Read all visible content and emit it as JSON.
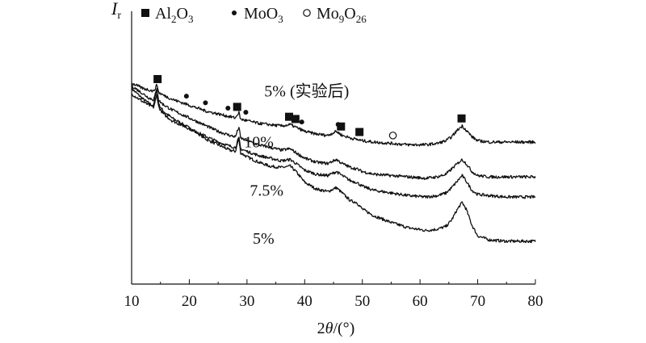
{
  "chart_data": {
    "type": "line",
    "xlabel": {
      "prefix": "2",
      "var": "θ",
      "suffix": "/(°)"
    },
    "ylabel": {
      "var": "I",
      "sub": "r"
    },
    "xlim": [
      10,
      80
    ],
    "x_ticks": [
      10,
      20,
      30,
      40,
      50,
      60,
      70,
      80
    ],
    "y_ticks": [],
    "grid": false,
    "legend": {
      "placement": "top",
      "entries": [
        {
          "marker": "square",
          "label_parts": [
            [
              "Al",
              false
            ],
            [
              "2",
              true
            ],
            [
              "O",
              false
            ],
            [
              "3",
              true
            ]
          ]
        },
        {
          "marker": "dot",
          "label_parts": [
            [
              "MoO",
              false
            ],
            [
              "3",
              true
            ]
          ]
        },
        {
          "marker": "circle",
          "label_parts": [
            [
              "Mo",
              false
            ],
            [
              "9",
              true
            ],
            [
              "O",
              false
            ],
            [
              "26",
              true
            ]
          ]
        }
      ]
    },
    "series": [
      {
        "name": "5%",
        "label": "5%",
        "label_x": 31,
        "baseline": 15,
        "points": [
          [
            10,
            73
          ],
          [
            11,
            71
          ],
          [
            12,
            69
          ],
          [
            13,
            67.5
          ],
          [
            13.8,
            66.5
          ],
          [
            14.2,
            71
          ],
          [
            14.4,
            73
          ],
          [
            14.7,
            67
          ],
          [
            15.5,
            64.5
          ],
          [
            17,
            62
          ],
          [
            19,
            59.5
          ],
          [
            21,
            57
          ],
          [
            23,
            54
          ],
          [
            25,
            52
          ],
          [
            27,
            50
          ],
          [
            28,
            49.5
          ],
          [
            28.4,
            53
          ],
          [
            28.6,
            54
          ],
          [
            28.9,
            49
          ],
          [
            30,
            47.5
          ],
          [
            32,
            45.5
          ],
          [
            34,
            44
          ],
          [
            36,
            43.5
          ],
          [
            37.5,
            44
          ],
          [
            38.5,
            42
          ],
          [
            40,
            38
          ],
          [
            42,
            35.5
          ],
          [
            44,
            34.5
          ],
          [
            45.5,
            36
          ],
          [
            46.5,
            34
          ],
          [
            48,
            31
          ],
          [
            49,
            30.5
          ],
          [
            50,
            28
          ],
          [
            52,
            25.5
          ],
          [
            55,
            23
          ],
          [
            58,
            21
          ],
          [
            61,
            20
          ],
          [
            63,
            20.5
          ],
          [
            64.5,
            21.5
          ],
          [
            65.5,
            24
          ],
          [
            66.5,
            28
          ],
          [
            67.3,
            30.5
          ],
          [
            68,
            28
          ],
          [
            69,
            22
          ],
          [
            70,
            18
          ],
          [
            72,
            16.5
          ],
          [
            75,
            16
          ],
          [
            80,
            16
          ]
        ]
      },
      {
        "name": "7.5%",
        "label": "7.5%",
        "label_x": 30.5,
        "baseline": 33,
        "points": [
          [
            10,
            71
          ],
          [
            11,
            69.5
          ],
          [
            12,
            68
          ],
          [
            13,
            66.8
          ],
          [
            13.8,
            66
          ],
          [
            14.2,
            69
          ],
          [
            14.4,
            70.5
          ],
          [
            14.7,
            66
          ],
          [
            15.5,
            63.5
          ],
          [
            17,
            61
          ],
          [
            19,
            59
          ],
          [
            21,
            57
          ],
          [
            23,
            55
          ],
          [
            25,
            53
          ],
          [
            27,
            51.5
          ],
          [
            28,
            51
          ],
          [
            28.4,
            53.5
          ],
          [
            28.6,
            54.5
          ],
          [
            28.9,
            50.5
          ],
          [
            30,
            49.5
          ],
          [
            32,
            48
          ],
          [
            34,
            47
          ],
          [
            36,
            46
          ],
          [
            37.5,
            46.5
          ],
          [
            38.5,
            45
          ],
          [
            40,
            42.5
          ],
          [
            42,
            41
          ],
          [
            44,
            40.5
          ],
          [
            45.5,
            42
          ],
          [
            46.5,
            40.5
          ],
          [
            48,
            38.5
          ],
          [
            49,
            38
          ],
          [
            50,
            36.5
          ],
          [
            52,
            35
          ],
          [
            55,
            34
          ],
          [
            58,
            33
          ],
          [
            61,
            32.5
          ],
          [
            63,
            33
          ],
          [
            64.5,
            34
          ],
          [
            65.5,
            36
          ],
          [
            66.5,
            38.5
          ],
          [
            67.3,
            40.5
          ],
          [
            68,
            38.5
          ],
          [
            69,
            35
          ],
          [
            70,
            33.5
          ],
          [
            72,
            33
          ],
          [
            75,
            32.5
          ],
          [
            80,
            32.5
          ]
        ]
      },
      {
        "name": "10%",
        "label": "10%",
        "label_x": 29.5,
        "baseline": 51,
        "points": [
          [
            10,
            74
          ],
          [
            11,
            72.5
          ],
          [
            12,
            71
          ],
          [
            13,
            69.5
          ],
          [
            13.8,
            68.8
          ],
          [
            14.2,
            71.5
          ],
          [
            14.4,
            73
          ],
          [
            14.7,
            68.5
          ],
          [
            15.5,
            67
          ],
          [
            17,
            65
          ],
          [
            19,
            63
          ],
          [
            21,
            61
          ],
          [
            23,
            59
          ],
          [
            25,
            57
          ],
          [
            27,
            55.5
          ],
          [
            28,
            55
          ],
          [
            28.4,
            57.5
          ],
          [
            28.6,
            58.5
          ],
          [
            28.9,
            54.5
          ],
          [
            30,
            53.5
          ],
          [
            32,
            52
          ],
          [
            34,
            51
          ],
          [
            36,
            50
          ],
          [
            37.5,
            50.5
          ],
          [
            38.5,
            49
          ],
          [
            40,
            47
          ],
          [
            42,
            45.5
          ],
          [
            44,
            45
          ],
          [
            45.5,
            46.5
          ],
          [
            46.5,
            45
          ],
          [
            48,
            43.5
          ],
          [
            49,
            43
          ],
          [
            50,
            42
          ],
          [
            52,
            41
          ],
          [
            55,
            40.5
          ],
          [
            58,
            40
          ],
          [
            61,
            39.5
          ],
          [
            63,
            40
          ],
          [
            64.5,
            41
          ],
          [
            65.5,
            43
          ],
          [
            66.5,
            45
          ],
          [
            67.3,
            46.5
          ],
          [
            68,
            45
          ],
          [
            69,
            42
          ],
          [
            70,
            40.5
          ],
          [
            72,
            40
          ],
          [
            75,
            40
          ],
          [
            80,
            40
          ]
        ]
      },
      {
        "name": "5% (实验后)",
        "label": "5% (实验后)",
        "label_x": 33,
        "baseline": 70,
        "points": [
          [
            10,
            75
          ],
          [
            11,
            74
          ],
          [
            12,
            73
          ],
          [
            13,
            72.5
          ],
          [
            13.8,
            72
          ],
          [
            14.2,
            73.5
          ],
          [
            14.4,
            74.5
          ],
          [
            14.7,
            71.5
          ],
          [
            15.5,
            70.5
          ],
          [
            17,
            69
          ],
          [
            19,
            67.5
          ],
          [
            21,
            66
          ],
          [
            23,
            64.5
          ],
          [
            25,
            63.5
          ],
          [
            27,
            62.5
          ],
          [
            28,
            62
          ],
          [
            28.4,
            63.5
          ],
          [
            28.6,
            64
          ],
          [
            28.9,
            61.5
          ],
          [
            30,
            61
          ],
          [
            32,
            60
          ],
          [
            34,
            59.5
          ],
          [
            36,
            59
          ],
          [
            37.5,
            59.5
          ],
          [
            38.5,
            58.5
          ],
          [
            40,
            57
          ],
          [
            42,
            56
          ],
          [
            44,
            55.5
          ],
          [
            45.5,
            57
          ],
          [
            46.5,
            55.5
          ],
          [
            48,
            54.5
          ],
          [
            49,
            54
          ],
          [
            50,
            53.5
          ],
          [
            52,
            53
          ],
          [
            55,
            52.5
          ],
          [
            58,
            52
          ],
          [
            61,
            52
          ],
          [
            63,
            52.5
          ],
          [
            64.5,
            53.5
          ],
          [
            65.5,
            55
          ],
          [
            66.5,
            57.5
          ],
          [
            67.3,
            59
          ],
          [
            68,
            57.5
          ],
          [
            69,
            55
          ],
          [
            70,
            53.5
          ],
          [
            72,
            53
          ],
          [
            75,
            53
          ],
          [
            80,
            53
          ]
        ]
      }
    ],
    "peak_markers": [
      {
        "type": "square",
        "x": 14.5
      },
      {
        "type": "dot",
        "x": 19.5
      },
      {
        "type": "dot",
        "x": 22.8
      },
      {
        "type": "dot",
        "x": 26.7
      },
      {
        "type": "square",
        "x": 28.3
      },
      {
        "type": "dot",
        "x": 29.8
      },
      {
        "type": "square",
        "x": 37.3
      },
      {
        "type": "square",
        "x": 38.4
      },
      {
        "type": "dot",
        "x": 39.5
      },
      {
        "type": "dot",
        "x": 45.8
      },
      {
        "type": "square",
        "x": 46.3
      },
      {
        "type": "square",
        "x": 49.5
      },
      {
        "type": "circle",
        "x": 55.3
      },
      {
        "type": "square",
        "x": 67.2
      }
    ]
  }
}
